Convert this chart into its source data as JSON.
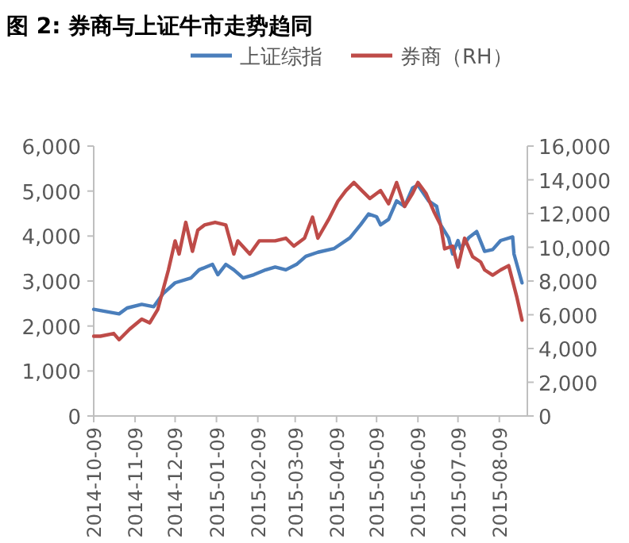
{
  "chart_data": {
    "type": "line",
    "title": "图 2: 券商与上证牛市走势趋同",
    "legend": "top",
    "grid": false,
    "xlim": [
      "2014-10-09",
      "2015-08-30"
    ],
    "xticks": [
      "2014-10-09",
      "2014-11-09",
      "2014-12-09",
      "2015-01-09",
      "2015-02-09",
      "2015-03-09",
      "2015-04-09",
      "2015-05-09",
      "2015-06-09",
      "2015-07-09",
      "2015-08-09"
    ],
    "ylim": [
      0,
      6000
    ],
    "yticks": [
      0,
      {
        "value": 1000,
        "label": "1,000"
      },
      {
        "value": 2000,
        "label": "2,000"
      },
      {
        "value": 3000,
        "label": "3,000"
      },
      {
        "value": 4000,
        "label": "4,000"
      },
      {
        "value": 5000,
        "label": "5,000"
      },
      {
        "value": 6000,
        "label": "6,000"
      }
    ],
    "y2lim": [
      0,
      16000
    ],
    "y2ticks": [
      0,
      {
        "value": 2000,
        "label": "2,000"
      },
      {
        "value": 4000,
        "label": "4,000"
      },
      {
        "value": 6000,
        "label": "6,000"
      },
      {
        "value": 8000,
        "label": "8,000"
      },
      {
        "value": 10000,
        "label": "10,000"
      },
      {
        "value": 12000,
        "label": "12,000"
      },
      {
        "value": 14000,
        "label": "14,000"
      },
      {
        "value": 16000,
        "label": "16,000"
      }
    ],
    "series": [
      {
        "name": "上证综指",
        "color": "#4a7ebb",
        "x": [
          "2014-10-09",
          "2014-10-28",
          "2014-11-03",
          "2014-11-14",
          "2014-11-23",
          "2014-11-30",
          "2014-12-09",
          "2014-12-21",
          "2014-12-27",
          "2015-01-06",
          "2015-01-10",
          "2015-01-16",
          "2015-01-22",
          "2015-01-29",
          "2015-02-06",
          "2015-02-15",
          "2015-02-22",
          "2015-03-02",
          "2015-03-10",
          "2015-03-17",
          "2015-03-26",
          "2015-04-07",
          "2015-04-19",
          "2015-04-27",
          "2015-05-03",
          "2015-05-09",
          "2015-05-12",
          "2015-05-18",
          "2015-05-24",
          "2015-05-30",
          "2015-06-05",
          "2015-06-09",
          "2015-06-17",
          "2015-06-23",
          "2015-06-26",
          "2015-07-02",
          "2015-07-05",
          "2015-07-09",
          "2015-07-11",
          "2015-07-17",
          "2015-07-23",
          "2015-07-29",
          "2015-08-04",
          "2015-08-10",
          "2015-08-19",
          "2015-08-20",
          "2015-08-26"
        ],
        "values": [
          2370,
          2270,
          2400,
          2480,
          2430,
          2720,
          2960,
          3070,
          3250,
          3370,
          3140,
          3370,
          3250,
          3070,
          3140,
          3250,
          3310,
          3250,
          3370,
          3550,
          3640,
          3720,
          3960,
          4250,
          4490,
          4430,
          4250,
          4370,
          4780,
          4660,
          5070,
          5130,
          4780,
          4660,
          4250,
          3960,
          3600,
          3900,
          3720,
          3960,
          4100,
          3660,
          3700,
          3900,
          3980,
          3600,
          2960
        ]
      },
      {
        "name": "券商（RH）",
        "color": "#be4b48",
        "axis": "y2",
        "x": [
          "2014-10-09",
          "2014-10-14",
          "2014-10-24",
          "2014-10-28",
          "2014-11-05",
          "2014-11-14",
          "2014-11-20",
          "2014-11-26",
          "2014-12-04",
          "2014-12-09",
          "2014-12-12",
          "2014-12-17",
          "2014-12-22",
          "2014-12-26",
          "2014-12-31",
          "2015-01-08",
          "2015-01-16",
          "2015-01-22",
          "2015-01-25",
          "2015-02-03",
          "2015-02-10",
          "2015-02-22",
          "2015-03-02",
          "2015-03-08",
          "2015-03-16",
          "2015-03-22",
          "2015-03-26",
          "2015-04-03",
          "2015-04-10",
          "2015-04-16",
          "2015-04-22",
          "2015-04-28",
          "2015-05-04",
          "2015-05-12",
          "2015-05-18",
          "2015-05-24",
          "2015-05-30",
          "2015-06-05",
          "2015-06-09",
          "2015-06-15",
          "2015-06-21",
          "2015-06-26",
          "2015-06-29",
          "2015-07-05",
          "2015-07-09",
          "2015-07-14",
          "2015-07-20",
          "2015-07-26",
          "2015-07-29",
          "2015-08-04",
          "2015-08-10",
          "2015-08-16",
          "2015-08-22",
          "2015-08-26"
        ],
        "values": [
          4730,
          4730,
          4890,
          4520,
          5150,
          5740,
          5520,
          6310,
          8660,
          10380,
          9600,
          11480,
          9760,
          11010,
          11320,
          11480,
          11320,
          9600,
          10380,
          9600,
          10380,
          10380,
          10540,
          10070,
          10540,
          11790,
          10540,
          11640,
          12730,
          13360,
          13840,
          13360,
          12890,
          13360,
          12580,
          13840,
          12420,
          13200,
          13840,
          13200,
          12110,
          11320,
          9910,
          10070,
          8820,
          10540,
          9440,
          9130,
          8660,
          8350,
          8660,
          8910,
          7090,
          5680
        ]
      }
    ]
  }
}
